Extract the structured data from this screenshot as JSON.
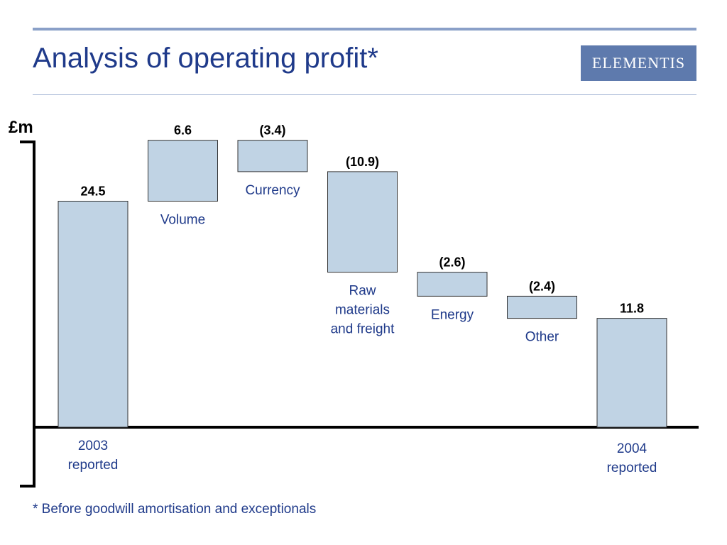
{
  "header": {
    "title": "Analysis of operating profit*",
    "logo_text": "ELEMENTIS"
  },
  "footnote": "* Before goodwill amortisation and exceptionals",
  "colors": {
    "title": "#1f3a8a",
    "bar_fill": "#c0d3e4",
    "bar_stroke": "#333333",
    "axis": "#000000",
    "rule": "#8aa0c8",
    "logo_bg": "#5e7aad"
  },
  "chart_data": {
    "type": "bar",
    "subtype": "waterfall",
    "unit_label": "£m",
    "categories": [
      "2003 reported",
      "Volume",
      "Currency",
      "Raw materials and freight",
      "Energy",
      "Other",
      "2004 reported"
    ],
    "category_lines": [
      [
        "2003",
        "reported"
      ],
      [
        "Volume"
      ],
      [
        "Currency"
      ],
      [
        "Raw",
        "materials",
        "and freight"
      ],
      [
        "Energy"
      ],
      [
        "Other"
      ],
      [
        "2004",
        "reported"
      ]
    ],
    "values": [
      24.5,
      6.6,
      -3.4,
      -10.9,
      -2.6,
      -2.4,
      11.8
    ],
    "value_labels": [
      "24.5",
      "6.6",
      "(3.4)",
      "(10.9)",
      "(2.6)",
      "(2.4)",
      "11.8"
    ],
    "kinds": [
      "total",
      "delta",
      "delta",
      "delta",
      "delta",
      "delta",
      "total"
    ],
    "ylim": [
      0,
      31.1
    ],
    "grid": false,
    "legend": "none"
  }
}
